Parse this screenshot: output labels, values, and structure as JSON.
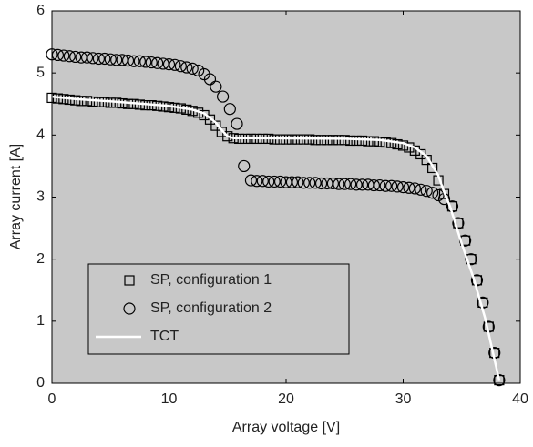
{
  "chart_data": {
    "type": "scatter",
    "x_label": "Array voltage [V]",
    "y_label": "Array current [A]",
    "xlim": [
      0,
      40
    ],
    "ylim": [
      0,
      6
    ],
    "xticks": [
      0,
      10,
      20,
      30,
      40
    ],
    "yticks": [
      0,
      1,
      2,
      3,
      4,
      5,
      6
    ],
    "background": "#c8c8c8",
    "legend": "lower left",
    "series": [
      {
        "name": "SP, configuration 1",
        "marker": "square",
        "color": "#000000",
        "x": [
          0,
          0.5,
          1,
          1.5,
          2,
          2.5,
          3,
          3.5,
          4,
          4.5,
          5,
          5.5,
          6,
          6.5,
          7,
          7.5,
          8,
          8.5,
          9,
          9.5,
          10,
          10.5,
          11,
          11.5,
          12,
          12.5,
          13,
          13.5,
          14,
          14.5,
          15,
          15.5,
          16,
          16.5,
          17,
          17.5,
          18,
          18.5,
          19,
          19.5,
          20,
          20.5,
          21,
          21.5,
          22,
          22.5,
          23,
          23.5,
          24,
          24.5,
          25,
          25.5,
          26,
          26.5,
          27,
          27.5,
          28,
          28.5,
          29,
          29.5,
          30,
          30.5,
          31,
          31.5,
          32,
          32.5,
          33,
          33.5,
          34.2,
          34.7,
          35.3,
          35.8,
          36.3,
          36.8,
          37.3,
          37.8,
          38.2
        ],
        "values": [
          4.6,
          4.59,
          4.58,
          4.57,
          4.56,
          4.55,
          4.55,
          4.54,
          4.53,
          4.53,
          4.52,
          4.52,
          4.51,
          4.5,
          4.5,
          4.49,
          4.48,
          4.48,
          4.47,
          4.46,
          4.45,
          4.44,
          4.43,
          4.41,
          4.39,
          4.36,
          4.32,
          4.25,
          4.15,
          4.05,
          3.98,
          3.95,
          3.94,
          3.94,
          3.94,
          3.94,
          3.94,
          3.94,
          3.93,
          3.93,
          3.93,
          3.93,
          3.93,
          3.93,
          3.93,
          3.92,
          3.92,
          3.92,
          3.92,
          3.92,
          3.92,
          3.91,
          3.91,
          3.91,
          3.9,
          3.9,
          3.89,
          3.88,
          3.87,
          3.85,
          3.83,
          3.8,
          3.75,
          3.69,
          3.6,
          3.47,
          3.27,
          3.05,
          2.85,
          2.58,
          2.3,
          2.0,
          1.66,
          1.3,
          0.91,
          0.49,
          0.05
        ]
      },
      {
        "name": "SP, configuration 2",
        "marker": "circle",
        "color": "#000000",
        "x": [
          0,
          0.5,
          1,
          1.5,
          2,
          2.5,
          3,
          3.5,
          4,
          4.5,
          5,
          5.5,
          6,
          6.5,
          7,
          7.5,
          8,
          8.5,
          9,
          9.5,
          10,
          10.5,
          11,
          11.5,
          12,
          12.5,
          13,
          13.5,
          14,
          14.6,
          15.2,
          15.8,
          16.4,
          17,
          17.5,
          18,
          18.5,
          19,
          19.5,
          20,
          20.5,
          21,
          21.5,
          22,
          22.5,
          23,
          23.5,
          24,
          24.5,
          25,
          25.5,
          26,
          26.5,
          27,
          27.5,
          28,
          28.5,
          29,
          29.5,
          30,
          30.5,
          31,
          31.5,
          32,
          32.5,
          33,
          33.5,
          34.2,
          34.7,
          35.3,
          35.8,
          36.3,
          36.8,
          37.3,
          37.8,
          38.2
        ],
        "values": [
          5.3,
          5.29,
          5.28,
          5.27,
          5.26,
          5.25,
          5.25,
          5.24,
          5.23,
          5.23,
          5.22,
          5.21,
          5.21,
          5.2,
          5.19,
          5.19,
          5.18,
          5.17,
          5.16,
          5.15,
          5.14,
          5.13,
          5.11,
          5.09,
          5.07,
          5.04,
          4.98,
          4.9,
          4.78,
          4.62,
          4.42,
          4.18,
          3.5,
          3.27,
          3.26,
          3.26,
          3.25,
          3.25,
          3.25,
          3.24,
          3.24,
          3.24,
          3.23,
          3.23,
          3.23,
          3.22,
          3.22,
          3.22,
          3.21,
          3.21,
          3.21,
          3.2,
          3.2,
          3.2,
          3.19,
          3.19,
          3.18,
          3.18,
          3.17,
          3.16,
          3.15,
          3.14,
          3.12,
          3.1,
          3.07,
          3.03,
          2.97,
          2.85,
          2.58,
          2.3,
          2.0,
          1.66,
          1.3,
          0.91,
          0.49,
          0.05
        ]
      },
      {
        "name": "TCT",
        "marker": "line",
        "color": "#ffffff",
        "x": [
          0,
          2,
          6,
          10,
          12,
          13,
          14,
          14.5,
          15,
          15.5,
          17,
          25,
          28,
          30,
          31,
          32,
          33,
          33.5,
          34,
          35,
          36,
          37,
          38.2
        ],
        "values": [
          4.62,
          4.58,
          4.53,
          4.47,
          4.41,
          4.35,
          4.2,
          4.08,
          3.98,
          3.95,
          3.95,
          3.94,
          3.92,
          3.87,
          3.8,
          3.66,
          3.35,
          3.08,
          2.85,
          2.25,
          1.7,
          1.05,
          0.05
        ]
      }
    ]
  }
}
